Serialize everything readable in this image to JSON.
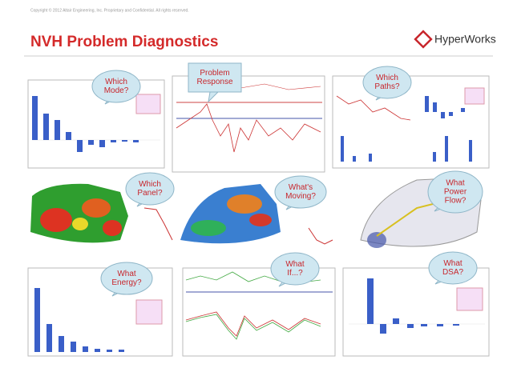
{
  "header": {
    "copyright": "Copyright © 2012 Altair Engineering, Inc. Proprietary and Confidential. All rights reserved.",
    "title": "NVH Problem Diagnostics",
    "logo": "HyperWorks"
  },
  "bubbles": [
    {
      "lines": [
        "Which",
        "Mode?"
      ]
    },
    {
      "lines": [
        "Problem",
        "Response"
      ]
    },
    {
      "lines": [
        "Which",
        "Paths?"
      ]
    },
    {
      "lines": [
        "Which",
        "Panel?"
      ]
    },
    {
      "lines": [
        "What's",
        "Moving?"
      ]
    },
    {
      "lines": [
        "What",
        "Power",
        "Flow?"
      ]
    },
    {
      "lines": [
        "What",
        "Energy?"
      ]
    },
    {
      "lines": [
        "What",
        "If...?"
      ]
    },
    {
      "lines": [
        "What",
        "DSA?"
      ]
    }
  ]
}
